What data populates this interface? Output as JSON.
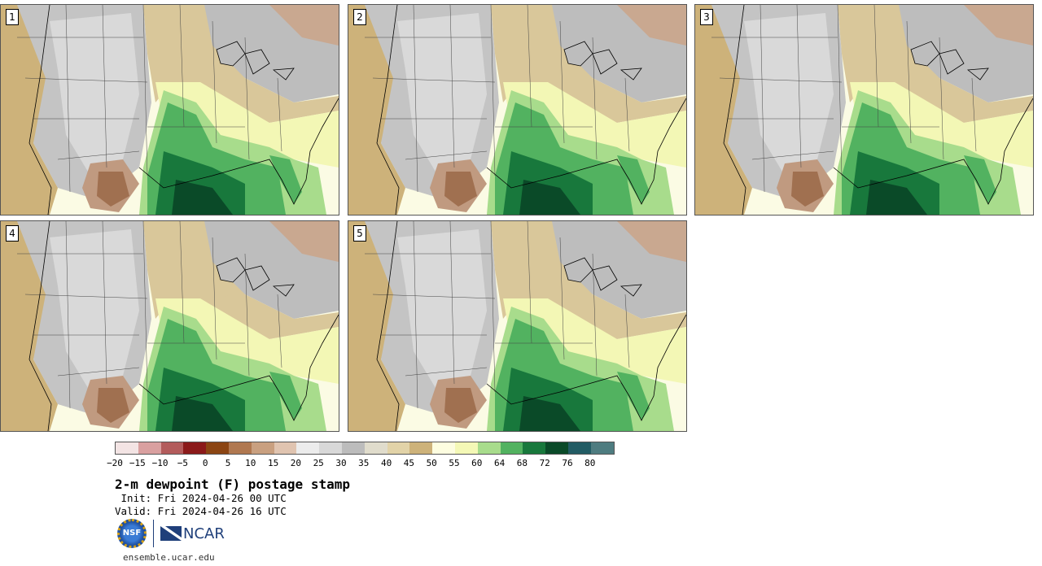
{
  "panels": [
    {
      "label": "1"
    },
    {
      "label": "2"
    },
    {
      "label": "3"
    },
    {
      "label": "4"
    },
    {
      "label": "5"
    }
  ],
  "colorbar": {
    "colors": [
      "#f3e4e4",
      "#d9a0a0",
      "#b35c5c",
      "#8b1a1a",
      "#8b4513",
      "#b07850",
      "#c9a080",
      "#e0c4b0",
      "#ececec",
      "#d8d8d8",
      "#bcbcbc",
      "#e0dccc",
      "#e2d3a8",
      "#cdb27a",
      "#fdfde0",
      "#f4f8b6",
      "#a8dc8c",
      "#52b260",
      "#18783c",
      "#0a4a28",
      "#225c64",
      "#4e7c80"
    ],
    "tick_labels": [
      "−20",
      "−15",
      "−10",
      "−5",
      "0",
      "5",
      "10",
      "15",
      "20",
      "25",
      "30",
      "35",
      "40",
      "45",
      "50",
      "55",
      "60",
      "64",
      "68",
      "72",
      "76",
      "80"
    ]
  },
  "title": "2-m dewpoint (F) postage stamp",
  "init": " Init: Fri 2024-04-26 00 UTC",
  "valid": "Valid: Fri 2024-04-26 16 UTC",
  "logos": {
    "nsf": "NSF",
    "ncar": "NCAR"
  },
  "site": "ensemble.ucar.edu"
}
